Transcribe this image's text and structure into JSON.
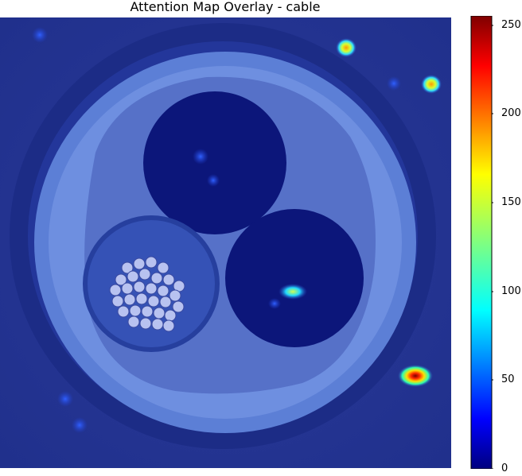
{
  "title": "Attention Map Overlay - cable",
  "colorbar": {
    "ticks": [
      "0",
      "50",
      "100",
      "150",
      "200",
      "250"
    ],
    "min": 0,
    "max": 255
  },
  "image": {
    "subject": "cable cross-section",
    "colormap": "jet"
  }
}
